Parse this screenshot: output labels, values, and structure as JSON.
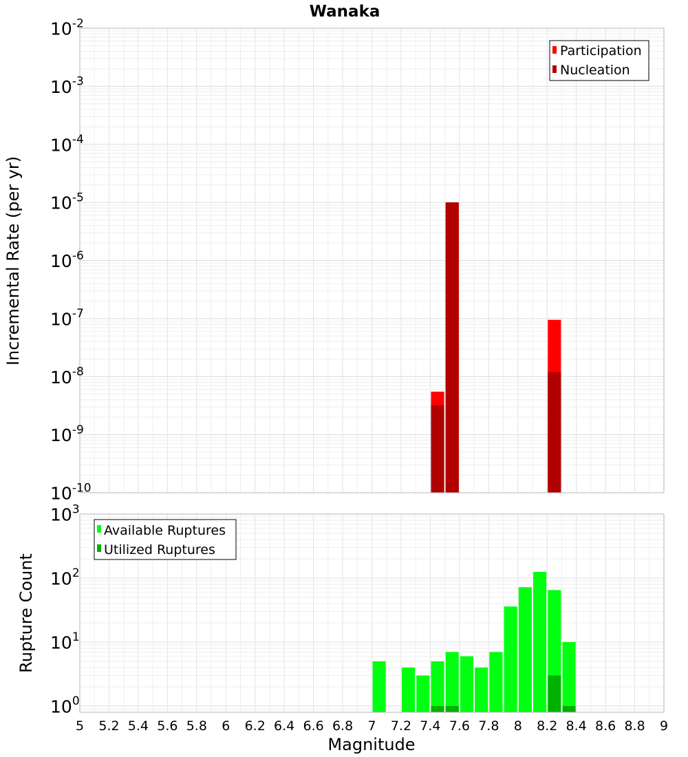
{
  "chart_data": [
    {
      "type": "bar",
      "title": "Wanaka",
      "ylabel": "Incremental Rate (per yr)",
      "xlabel": "",
      "y_scale": "log",
      "ylim": [
        1e-10,
        0.01
      ],
      "xlim": [
        5,
        9
      ],
      "y_ticks": [
        {
          "base": "10",
          "exp": "-10"
        },
        {
          "base": "10",
          "exp": "-9"
        },
        {
          "base": "10",
          "exp": "-8"
        },
        {
          "base": "10",
          "exp": "-7"
        },
        {
          "base": "10",
          "exp": "-6"
        },
        {
          "base": "10",
          "exp": "-5"
        },
        {
          "base": "10",
          "exp": "-4"
        },
        {
          "base": "10",
          "exp": "-3"
        },
        {
          "base": "10",
          "exp": "-2"
        }
      ],
      "grid": true,
      "legend_position": "top-right",
      "bar_width": 0.09,
      "series": [
        {
          "name": "Participation",
          "color": "#ff0000",
          "x": [
            7.45,
            7.55,
            8.25
          ],
          "values": [
            5.5e-09,
            1e-05,
            9.5e-08
          ]
        },
        {
          "name": "Nucleation",
          "color": "#b00000",
          "x": [
            7.45,
            7.55,
            8.25
          ],
          "values": [
            3.2e-09,
            1e-05,
            1.2e-08
          ]
        }
      ]
    },
    {
      "type": "bar",
      "title": "",
      "ylabel": "Rupture Count",
      "xlabel": "Magnitude",
      "y_scale": "log",
      "ylim": [
        0.8,
        1000
      ],
      "xlim": [
        5,
        9
      ],
      "y_ticks": [
        {
          "value": 1,
          "base": "10",
          "exp": "0"
        },
        {
          "value": 10,
          "base": "10",
          "exp": "1"
        },
        {
          "value": 100,
          "base": "10",
          "exp": "2"
        },
        {
          "value": 1000,
          "base": "10",
          "exp": "3"
        }
      ],
      "x_ticks": [
        "5",
        "5.2",
        "5.4",
        "5.6",
        "5.8",
        "6",
        "6.2",
        "6.4",
        "6.6",
        "6.8",
        "7",
        "7.2",
        "7.4",
        "7.6",
        "7.8",
        "8",
        "8.2",
        "8.4",
        "8.6",
        "8.8",
        "9"
      ],
      "grid": true,
      "legend_position": "top-left",
      "bar_width": 0.09,
      "series": [
        {
          "name": "Available Ruptures",
          "color": "#00ff10",
          "x": [
            7.05,
            7.25,
            7.35,
            7.45,
            7.55,
            7.65,
            7.75,
            7.85,
            7.95,
            8.05,
            8.15,
            8.25,
            8.35
          ],
          "values": [
            5,
            4,
            3,
            5,
            7,
            6,
            4,
            7,
            36,
            72,
            125,
            65,
            10
          ]
        },
        {
          "name": "Utilized Ruptures",
          "color": "#00b000",
          "x": [
            7.45,
            7.55,
            8.25,
            8.35
          ],
          "values": [
            1,
            1,
            3,
            1
          ]
        }
      ]
    }
  ]
}
